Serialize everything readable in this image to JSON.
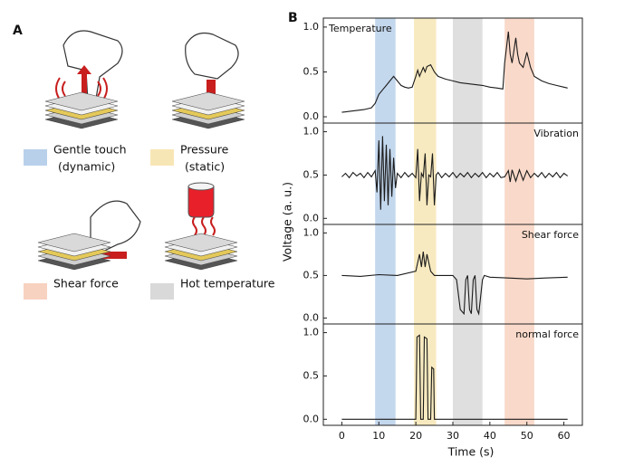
{
  "panel_a": {
    "label": "A",
    "legend": [
      {
        "lines": [
          "Gentle touch",
          "(dynamic)"
        ],
        "color": "#b9d0ea"
      },
      {
        "lines": [
          "Pressure",
          "(static)"
        ],
        "color": "#f7e6b5"
      },
      {
        "lines": [
          "Shear force"
        ],
        "color": "#f8d2c0"
      },
      {
        "lines": [
          "Hot temperature"
        ],
        "color": "#d9d9d9"
      }
    ]
  },
  "chart_data": {
    "type": "line",
    "label": "B",
    "xlabel": "Time (s)",
    "ylabel": "Voltage (a. u.)",
    "xlim": [
      -5,
      65
    ],
    "xticks": [
      0,
      10,
      20,
      30,
      40,
      50,
      60
    ],
    "regions": [
      {
        "start": 9,
        "end": 14.5,
        "color": "#b9d0ea"
      },
      {
        "start": 19.5,
        "end": 25.5,
        "color": "#f7e6b5"
      },
      {
        "start": 30,
        "end": 38,
        "color": "#d9d9d9"
      },
      {
        "start": 44,
        "end": 52,
        "color": "#f8d2c0"
      }
    ],
    "panels": [
      {
        "title": "Temperature",
        "title_corner": "top-left",
        "ylim": [
          -0.07,
          1.1
        ],
        "yticks": [
          {
            "value": 0,
            "label": "0.0"
          },
          {
            "value": 0.5,
            "label": "0.5"
          },
          {
            "value": 1,
            "label": "1.0"
          }
        ],
        "series": [
          {
            "color": "#1a1a1a",
            "x": [
              0,
              2,
              4,
              6,
              8,
              9,
              10,
              11,
              12,
              13,
              14,
              15,
              16,
              17,
              18,
              19,
              20,
              20.5,
              21,
              22,
              22.5,
              23,
              24,
              25,
              26,
              28,
              30,
              32,
              34,
              36,
              38,
              40,
              42,
              43.5,
              44,
              45,
              45.5,
              46,
              47,
              47.5,
              48,
              49,
              50,
              51,
              52,
              54,
              56,
              58,
              60,
              61
            ],
            "values": [
              0.05,
              0.06,
              0.07,
              0.08,
              0.1,
              0.15,
              0.25,
              0.3,
              0.35,
              0.4,
              0.45,
              0.4,
              0.35,
              0.33,
              0.32,
              0.33,
              0.45,
              0.52,
              0.45,
              0.55,
              0.5,
              0.56,
              0.58,
              0.5,
              0.45,
              0.42,
              0.4,
              0.38,
              0.37,
              0.36,
              0.35,
              0.33,
              0.32,
              0.31,
              0.6,
              0.95,
              0.7,
              0.6,
              0.88,
              0.7,
              0.6,
              0.55,
              0.72,
              0.55,
              0.45,
              0.4,
              0.37,
              0.35,
              0.33,
              0.32
            ]
          }
        ]
      },
      {
        "title": "Vibration",
        "title_corner": "top-right",
        "ylim": [
          -0.07,
          1.1
        ],
        "yticks": [
          {
            "value": 0,
            "label": "0.0"
          },
          {
            "value": 0.5,
            "label": "0.5"
          },
          {
            "value": 1,
            "label": "1.0"
          }
        ],
        "series": [
          {
            "color": "#1a1a1a",
            "x": [
              0,
              1,
              2,
              3,
              4,
              5,
              6,
              7,
              8,
              9,
              9.5,
              10,
              10.5,
              11,
              11.5,
              12,
              12.5,
              13,
              13.5,
              14,
              14.5,
              15,
              16,
              17,
              18,
              19,
              20,
              20.5,
              21,
              21.5,
              22,
              22.5,
              23,
              23.5,
              24,
              24.5,
              25,
              25.5,
              26,
              27,
              28,
              29,
              30,
              31,
              32,
              33,
              34,
              35,
              36,
              37,
              38,
              39,
              40,
              41,
              42,
              43,
              44,
              45,
              45.5,
              46,
              47,
              48,
              49,
              50,
              51,
              52,
              53,
              54,
              55,
              56,
              57,
              58,
              59,
              60,
              61
            ],
            "values": [
              0.48,
              0.52,
              0.47,
              0.53,
              0.49,
              0.52,
              0.47,
              0.53,
              0.48,
              0.55,
              0.3,
              0.9,
              0.1,
              0.95,
              0.2,
              0.85,
              0.15,
              0.8,
              0.25,
              0.7,
              0.35,
              0.52,
              0.47,
              0.53,
              0.48,
              0.52,
              0.47,
              0.8,
              0.2,
              0.52,
              0.48,
              0.75,
              0.15,
              0.5,
              0.48,
              0.75,
              0.15,
              0.5,
              0.53,
              0.47,
              0.52,
              0.48,
              0.53,
              0.47,
              0.52,
              0.48,
              0.53,
              0.47,
              0.52,
              0.48,
              0.53,
              0.47,
              0.52,
              0.48,
              0.53,
              0.47,
              0.48,
              0.55,
              0.42,
              0.56,
              0.43,
              0.56,
              0.44,
              0.55,
              0.47,
              0.52,
              0.48,
              0.53,
              0.47,
              0.52,
              0.48,
              0.53,
              0.47,
              0.52,
              0.49
            ]
          }
        ]
      },
      {
        "title": "Shear force",
        "title_corner": "top-right",
        "ylim": [
          -0.07,
          1.1
        ],
        "yticks": [
          {
            "value": 0,
            "label": "0.0"
          },
          {
            "value": 0.5,
            "label": "0.5"
          },
          {
            "value": 1,
            "label": "1.0"
          }
        ],
        "series": [
          {
            "color": "#1a1a1a",
            "x": [
              0,
              5,
              10,
              15,
              20,
              21,
              21.5,
              22,
              22.5,
              23,
              24,
              25,
              30,
              31,
              32,
              33,
              33.5,
              34,
              34.5,
              35,
              35.5,
              36,
              36.5,
              37,
              38,
              38.5,
              40,
              45,
              50,
              55,
              61
            ],
            "values": [
              0.5,
              0.49,
              0.51,
              0.5,
              0.55,
              0.75,
              0.6,
              0.78,
              0.6,
              0.75,
              0.55,
              0.5,
              0.5,
              0.45,
              0.1,
              0.05,
              0.45,
              0.5,
              0.1,
              0.05,
              0.45,
              0.5,
              0.1,
              0.05,
              0.45,
              0.5,
              0.48,
              0.47,
              0.46,
              0.47,
              0.48
            ]
          }
        ]
      },
      {
        "title": "normal force",
        "title_corner": "top-right",
        "ylim": [
          -0.07,
          1.1
        ],
        "yticks": [
          {
            "value": 0,
            "label": "0.0"
          },
          {
            "value": 0.5,
            "label": "0.5"
          },
          {
            "value": 1,
            "label": "1.0"
          }
        ],
        "series": [
          {
            "color": "#1a1a1a",
            "x": [
              0,
              20,
              20.3,
              21,
              21.3,
              22,
              22.3,
              23,
              23.3,
              24,
              24.3,
              24.8,
              25,
              61
            ],
            "values": [
              0,
              0,
              0.95,
              0.97,
              0,
              0,
              0.95,
              0.93,
              0,
              0,
              0.6,
              0.58,
              0,
              0
            ]
          }
        ]
      }
    ]
  }
}
